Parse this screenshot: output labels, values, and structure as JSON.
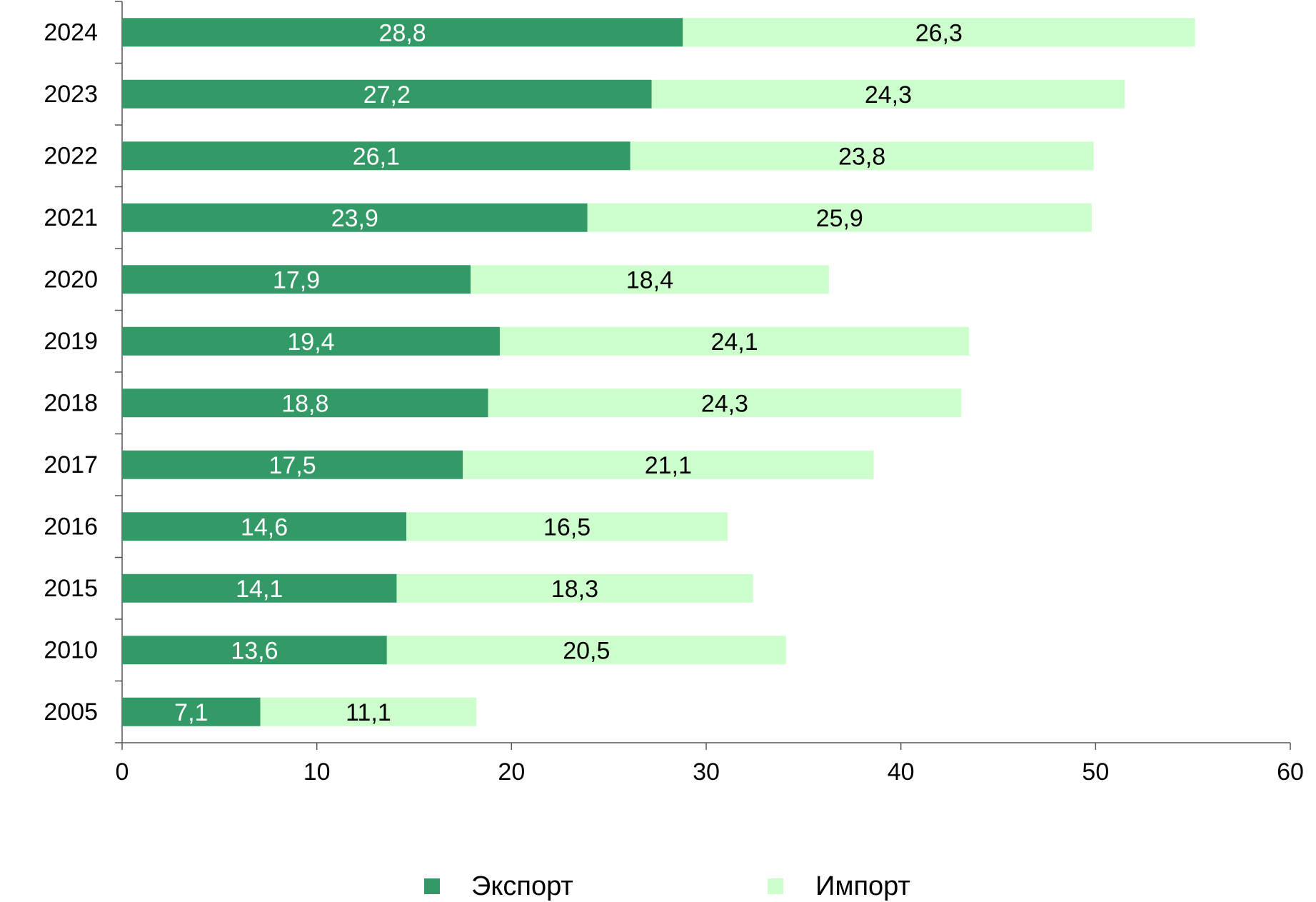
{
  "chart_data": {
    "type": "bar",
    "orientation": "horizontal",
    "stacked": true,
    "categories": [
      "2024",
      "2023",
      "2022",
      "2021",
      "2020",
      "2019",
      "2018",
      "2017",
      "2016",
      "2015",
      "2010",
      "2005"
    ],
    "series": [
      {
        "name": "Экспорт",
        "color": "#339966",
        "label_color": "#ffffff",
        "values": [
          28.8,
          27.2,
          26.1,
          23.9,
          17.9,
          19.4,
          18.8,
          17.5,
          14.6,
          14.1,
          13.6,
          7.1
        ],
        "labels": [
          "28,8",
          "27,2",
          "26,1",
          "23,9",
          "17,9",
          "19,4",
          "18,8",
          "17,5",
          "14,6",
          "14,1",
          "13,6",
          "7,1"
        ]
      },
      {
        "name": "Импорт",
        "color": "#ccffcc",
        "label_color": "#000000",
        "values": [
          26.3,
          24.3,
          23.8,
          25.9,
          18.4,
          24.1,
          24.3,
          21.1,
          16.5,
          18.3,
          20.5,
          11.1
        ],
        "labels": [
          "26,3",
          "24,3",
          "23,8",
          "25,9",
          "18,4",
          "24,1",
          "24,3",
          "21,1",
          "16,5",
          "18,3",
          "20,5",
          "11,1"
        ]
      }
    ],
    "x_ticks": [
      "0",
      "10",
      "20",
      "30",
      "40",
      "50",
      "60"
    ],
    "xlim": [
      0,
      60
    ],
    "grid": false,
    "legend_position": "bottom"
  }
}
